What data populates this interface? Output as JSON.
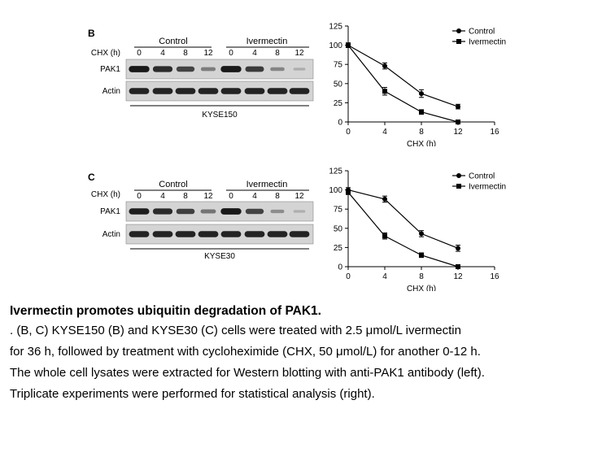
{
  "panels": [
    {
      "letter": "B",
      "group_labels": [
        "Control",
        "Ivermectin"
      ],
      "chx_label": "CHX (h)",
      "lane_labels": [
        "0",
        "4",
        "8",
        "12",
        "0",
        "4",
        "8",
        "12"
      ],
      "row_labels": [
        "PAK1",
        "Actin"
      ],
      "cell_line": "KYSE150",
      "pak1_intensity": [
        0.95,
        0.85,
        0.7,
        0.35,
        0.95,
        0.75,
        0.3,
        0.06
      ],
      "actin_intensity": [
        0.9,
        0.9,
        0.9,
        0.9,
        0.9,
        0.9,
        0.9,
        0.9
      ]
    },
    {
      "letter": "C",
      "group_labels": [
        "Control",
        "Ivermectin"
      ],
      "chx_label": "CHX (h)",
      "lane_labels": [
        "0",
        "4",
        "8",
        "12",
        "0",
        "4",
        "8",
        "12"
      ],
      "row_labels": [
        "PAK1",
        "Actin"
      ],
      "cell_line": "KYSE30",
      "pak1_intensity": [
        0.92,
        0.85,
        0.72,
        0.4,
        0.95,
        0.7,
        0.25,
        0.05
      ],
      "actin_intensity": [
        0.9,
        0.9,
        0.9,
        0.9,
        0.9,
        0.9,
        0.9,
        0.9
      ]
    }
  ],
  "chart_data": [
    {
      "type": "line",
      "title": "",
      "xlabel": "CHX (h)",
      "ylabel": "",
      "xlim": [
        0,
        16
      ],
      "ylim": [
        0,
        125
      ],
      "xticks": [
        "0",
        "4",
        "8",
        "12",
        "16"
      ],
      "yticks": [
        "0",
        "25",
        "50",
        "75",
        "100",
        "125"
      ],
      "legend_position": "top-right",
      "series": [
        {
          "name": "Control",
          "marker": "circle",
          "x": [
            0,
            4,
            8,
            12
          ],
          "y": [
            100,
            73,
            37,
            20
          ],
          "err": [
            3,
            4,
            5,
            3
          ]
        },
        {
          "name": "Ivermectin",
          "marker": "square",
          "x": [
            0,
            4,
            8,
            12
          ],
          "y": [
            100,
            40,
            13,
            0
          ],
          "err": [
            3,
            5,
            3,
            1
          ]
        }
      ]
    },
    {
      "type": "line",
      "title": "",
      "xlabel": "CHX (h)",
      "ylabel": "",
      "xlim": [
        0,
        16
      ],
      "ylim": [
        0,
        125
      ],
      "xticks": [
        "0",
        "4",
        "8",
        "12",
        "16"
      ],
      "yticks": [
        "0",
        "25",
        "50",
        "75",
        "100",
        "125"
      ],
      "legend_position": "top-right",
      "series": [
        {
          "name": "Control",
          "marker": "circle",
          "x": [
            0,
            4,
            8,
            12
          ],
          "y": [
            100,
            88,
            43,
            24
          ],
          "err": [
            3,
            4,
            4,
            4
          ]
        },
        {
          "name": "Ivermectin",
          "marker": "square",
          "x": [
            0,
            4,
            8,
            12
          ],
          "y": [
            97,
            40,
            15,
            0
          ],
          "err": [
            3,
            4,
            3,
            1
          ]
        }
      ]
    }
  ],
  "caption": {
    "title": "Ivermectin promotes ubiquitin degradation of PAK1.",
    "lines": [
      ". (B, C) KYSE150 (B) and KYSE30 (C) cells were treated with 2.5 μmol/L ivermectin",
      "for 36 h, followed by treatment with cycloheximide (CHX, 50 μmol/L) for another 0-12 h.",
      "The whole cell lysates were extracted for Western blotting with anti-PAK1 antibody (left).",
      "Triplicate experiments were performed for statistical analysis (right)."
    ]
  }
}
